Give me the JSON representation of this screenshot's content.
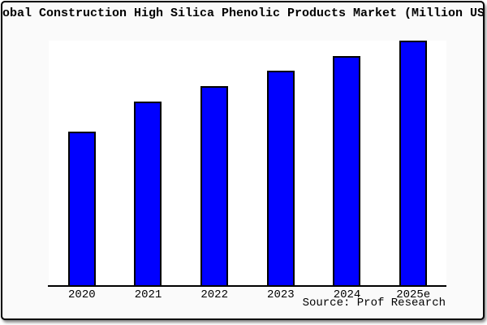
{
  "page": {
    "background": "#ffffff",
    "frame_bg": "#fafafa",
    "frame_border_color": "#000000"
  },
  "chart_data": {
    "type": "bar",
    "title": "Global Construction High Silica Phenolic Products Market (Million USD)",
    "title_visible_clipped": "obal Construction High Silica Phenolic Products Market (Million US",
    "categories": [
      "2020",
      "2021",
      "2022",
      "2023",
      "2024",
      "2025e"
    ],
    "values": [
      189,
      226,
      245,
      264,
      282,
      301
    ],
    "value_scale": "relative (no y-axis labels shown; values estimated from bar heights in px)",
    "xlabel": "",
    "ylabel": "",
    "y_axis_visible": false,
    "grid": false,
    "legend": false,
    "bar_color": "#0000ff",
    "bar_edge_color": "#000000",
    "plot_bg": "#ffffff",
    "source_note": "Source: Prof Research"
  }
}
